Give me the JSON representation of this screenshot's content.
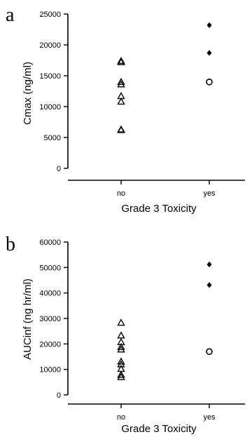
{
  "chart_data": [
    {
      "panel": "a",
      "type": "scatter",
      "xlabel": "Grade 3 Toxicity",
      "ylabel": "Cmax (ng/ml)",
      "categories": [
        "no",
        "yes"
      ],
      "ylim": [
        0,
        25000
      ],
      "yticks": [
        0,
        5000,
        10000,
        15000,
        20000,
        25000
      ],
      "ytick_labels": [
        "0",
        "5000",
        "10000",
        "15000",
        "20000",
        "25000"
      ],
      "grid": false,
      "series": [
        {
          "marker": "triangle-open",
          "category": "no",
          "values": [
            17400,
            17200,
            14000,
            13600,
            11700,
            10800,
            6300,
            6200
          ]
        },
        {
          "marker": "diamond-filled",
          "category": "yes",
          "values": [
            23200,
            18700
          ]
        },
        {
          "marker": "circle-open",
          "category": "yes",
          "values": [
            14000
          ]
        }
      ]
    },
    {
      "panel": "b",
      "type": "scatter",
      "xlabel": "Grade 3 Toxicity",
      "ylabel": "AUCinf (ng hr/ml)",
      "categories": [
        "no",
        "yes"
      ],
      "ylim": [
        0,
        60000
      ],
      "yticks": [
        0,
        10000,
        20000,
        30000,
        40000,
        50000,
        60000
      ],
      "ytick_labels": [
        "0",
        "10000",
        "20000",
        "30000",
        "40000",
        "50000",
        "60000"
      ],
      "grid": false,
      "series": [
        {
          "marker": "triangle-open",
          "category": "no",
          "values": [
            28300,
            23300,
            20700,
            18800,
            17800,
            13100,
            12000,
            10200,
            7900,
            7000
          ]
        },
        {
          "marker": "diamond-filled",
          "category": "yes",
          "values": [
            51200,
            43100
          ]
        },
        {
          "marker": "circle-open",
          "category": "yes",
          "values": [
            17000
          ]
        }
      ]
    }
  ]
}
